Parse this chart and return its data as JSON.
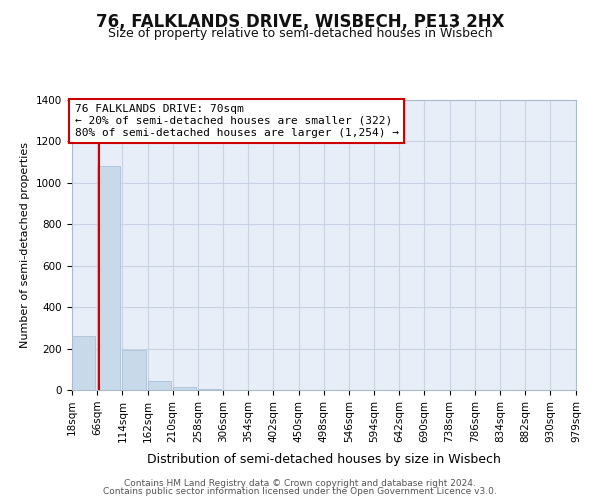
{
  "title": "76, FALKLANDS DRIVE, WISBECH, PE13 2HX",
  "subtitle": "Size of property relative to semi-detached houses in Wisbech",
  "xlabel": "Distribution of semi-detached houses by size in Wisbech",
  "ylabel": "Number of semi-detached properties",
  "annotation_line1": "76 FALKLANDS DRIVE: 70sqm",
  "annotation_line2": "← 20% of semi-detached houses are smaller (322)",
  "annotation_line3": "80% of semi-detached houses are larger (1,254) →",
  "footer_line1": "Contains HM Land Registry data © Crown copyright and database right 2024.",
  "footer_line2": "Contains public sector information licensed under the Open Government Licence v3.0.",
  "property_size": 70,
  "bin_edges": [
    18,
    66,
    114,
    162,
    210,
    258,
    306,
    354,
    402,
    450,
    498,
    546,
    594,
    642,
    690,
    738,
    786,
    834,
    882,
    930,
    979
  ],
  "bar_heights": [
    260,
    1080,
    195,
    45,
    15,
    4,
    2,
    1,
    0,
    1,
    0,
    0,
    0,
    0,
    0,
    0,
    0,
    0,
    0,
    0
  ],
  "bar_color": "#c8daea",
  "bar_edgecolor": "#aac0d8",
  "line_color": "#cc0000",
  "annotation_box_edgecolor": "#cc0000",
  "background_color": "#ffffff",
  "axes_facecolor": "#e8eef8",
  "ylim": [
    0,
    1400
  ],
  "yticks": [
    0,
    200,
    400,
    600,
    800,
    1000,
    1200,
    1400
  ],
  "grid_color": "#c8d4e4",
  "title_fontsize": 12,
  "subtitle_fontsize": 9,
  "ylabel_fontsize": 8,
  "xlabel_fontsize": 9,
  "tick_fontsize": 7.5,
  "footer_fontsize": 6.5
}
